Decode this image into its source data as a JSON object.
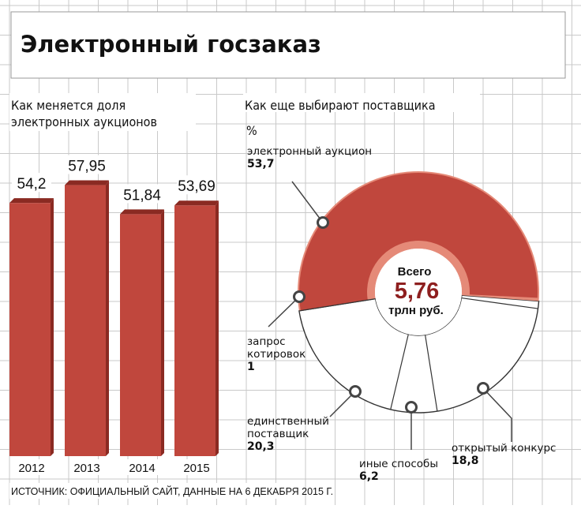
{
  "header": {
    "title": "Электронный госзаказ"
  },
  "left": {
    "subtitle_line1": "Как меняется доля",
    "subtitle_line2": "электронных аукционов"
  },
  "right": {
    "subtitle": "Как еще выбирают поставщика",
    "unit": "%",
    "center_top": "Всего",
    "center_value": "5,76",
    "center_unit": "трлн руб."
  },
  "source": "ИСТОЧНИК: ОФИЦИАЛЬНЫЙ САЙТ, ДАННЫЕ НА 6 ДЕКАБРЯ 2015 Г.",
  "colors": {
    "accent": "#c0473d",
    "accent_dark": "#8a2a22",
    "accent_light": "#e58a78",
    "grid": "#c9c9c9",
    "value_red": "#8e1f1f"
  },
  "chart_data": [
    {
      "type": "bar",
      "categories": [
        "2012",
        "2013",
        "2014",
        "2015"
      ],
      "values": [
        54.2,
        57.95,
        51.84,
        53.69
      ],
      "value_labels": [
        "54,2",
        "57,95",
        "51,84",
        "53,69"
      ],
      "title": "Как меняется доля электронных аукционов"
    },
    {
      "type": "pie",
      "title": "Как еще выбирают поставщика",
      "unit": "%",
      "labels": [
        "электронный аукцион",
        "запрос котировок",
        "единственный поставщик",
        "иные способы",
        "открытый конкурс"
      ],
      "values": [
        53.7,
        1,
        20.3,
        6.2,
        18.8
      ],
      "value_labels": [
        "53,7",
        "1",
        "20,3",
        "6,2",
        "18,8"
      ],
      "label_lines": [
        [
          "электронный аукцион"
        ],
        [
          "запрос",
          "котировок"
        ],
        [
          "единственный",
          "поставщик"
        ],
        [
          "иные способы"
        ],
        [
          "открытый конкурс"
        ]
      ]
    }
  ]
}
